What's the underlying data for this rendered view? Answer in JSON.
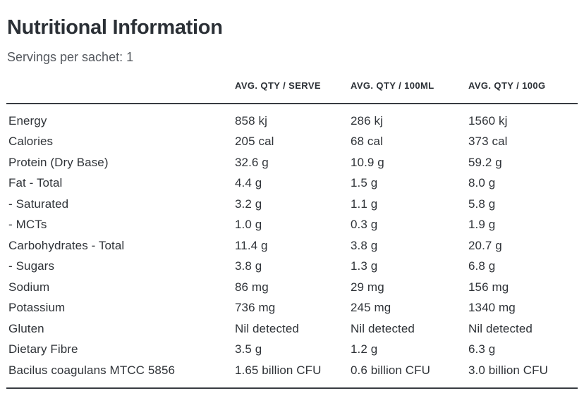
{
  "page": {
    "title": "Nutritional Information",
    "subtitle": "Servings per sachet: 1"
  },
  "table": {
    "column_headers": {
      "serve": "AVG. QTY / SERVE",
      "per_100ml": "AVG. QTY / 100ML",
      "per_100g": "AVG. QTY / 100G"
    },
    "rows": [
      {
        "label": "Energy",
        "serve": "858 kj",
        "per_100ml": "286 kj",
        "per_100g": "1560 kj"
      },
      {
        "label": "Calories",
        "serve": "205 cal",
        "per_100ml": "68 cal",
        "per_100g": "373 cal"
      },
      {
        "label": "Protein (Dry Base)",
        "serve": "32.6 g",
        "per_100ml": "10.9 g",
        "per_100g": "59.2 g"
      },
      {
        "label": "Fat - Total",
        "serve": "4.4 g",
        "per_100ml": "1.5 g",
        "per_100g": "8.0 g"
      },
      {
        "label": "- Saturated",
        "serve": "3.2 g",
        "per_100ml": "1.1 g",
        "per_100g": "5.8 g"
      },
      {
        "label": "- MCTs",
        "serve": "1.0 g",
        "per_100ml": "0.3 g",
        "per_100g": "1.9 g"
      },
      {
        "label": "Carbohydrates - Total",
        "serve": "11.4 g",
        "per_100ml": "3.8 g",
        "per_100g": "20.7 g"
      },
      {
        "label": "- Sugars",
        "serve": "3.8 g",
        "per_100ml": "1.3 g",
        "per_100g": "6.8 g"
      },
      {
        "label": "Sodium",
        "serve": "86 mg",
        "per_100ml": "29 mg",
        "per_100g": "156 mg"
      },
      {
        "label": "Potassium",
        "serve": "736 mg",
        "per_100ml": "245 mg",
        "per_100g": "1340 mg"
      },
      {
        "label": "Gluten",
        "serve": "Nil detected",
        "per_100ml": "Nil detected",
        "per_100g": "Nil detected"
      },
      {
        "label": "Dietary Fibre",
        "serve": "3.5 g",
        "per_100ml": "1.2 g",
        "per_100g": "6.3 g"
      },
      {
        "label": "Bacilus coagulans MTCC 5856",
        "serve": "1.65 billion CFU",
        "per_100ml": "0.6 billion CFU",
        "per_100g": "3.0 billion CFU"
      }
    ]
  },
  "colors": {
    "title_text": "#2b3036",
    "body_text": "#2f3338",
    "subtitle_text": "#54585e",
    "rule": "#383c42",
    "background": "#ffffff"
  }
}
